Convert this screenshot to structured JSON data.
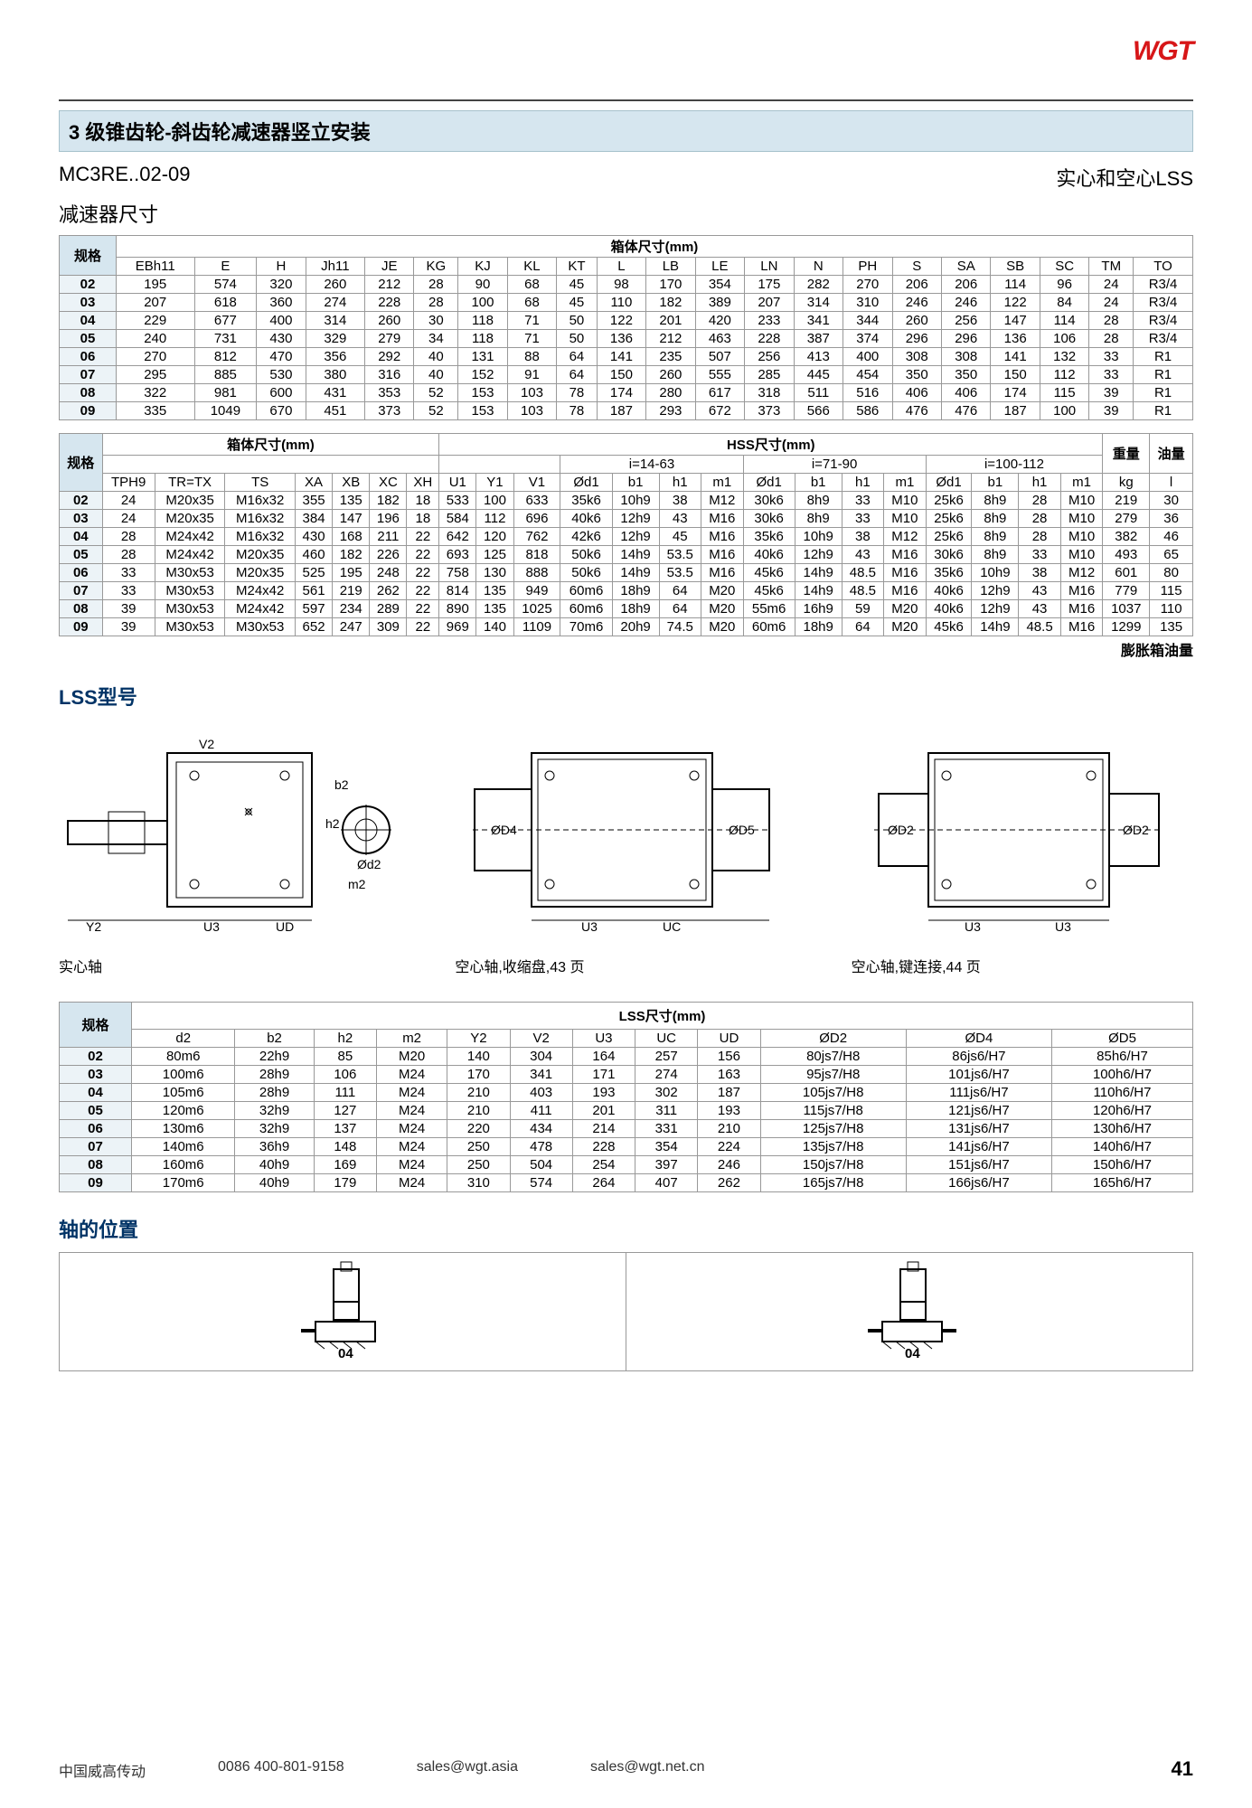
{
  "brand": "WGT",
  "section_title": "3 级锥齿轮-斜齿轮减速器竖立安装",
  "model_code": "MC3RE..02-09",
  "variant_label": "实心和空心LSS",
  "dim_label": "减速器尺寸",
  "table1": {
    "group_title": "箱体尺寸(mm)",
    "head_spec": "规格",
    "cols": [
      "EBh11",
      "E",
      "H",
      "Jh11",
      "JE",
      "KG",
      "KJ",
      "KL",
      "KT",
      "L",
      "LB",
      "LE",
      "LN",
      "N",
      "PH",
      "S",
      "SA",
      "SB",
      "SC",
      "TM",
      "TO"
    ],
    "rows": [
      [
        "02",
        "195",
        "574",
        "320",
        "260",
        "212",
        "28",
        "90",
        "68",
        "45",
        "98",
        "170",
        "354",
        "175",
        "282",
        "270",
        "206",
        "206",
        "114",
        "96",
        "24",
        "R3/4"
      ],
      [
        "03",
        "207",
        "618",
        "360",
        "274",
        "228",
        "28",
        "100",
        "68",
        "45",
        "110",
        "182",
        "389",
        "207",
        "314",
        "310",
        "246",
        "246",
        "122",
        "84",
        "24",
        "R3/4"
      ],
      [
        "04",
        "229",
        "677",
        "400",
        "314",
        "260",
        "30",
        "118",
        "71",
        "50",
        "122",
        "201",
        "420",
        "233",
        "341",
        "344",
        "260",
        "256",
        "147",
        "114",
        "28",
        "R3/4"
      ],
      [
        "05",
        "240",
        "731",
        "430",
        "329",
        "279",
        "34",
        "118",
        "71",
        "50",
        "136",
        "212",
        "463",
        "228",
        "387",
        "374",
        "296",
        "296",
        "136",
        "106",
        "28",
        "R3/4"
      ],
      [
        "06",
        "270",
        "812",
        "470",
        "356",
        "292",
        "40",
        "131",
        "88",
        "64",
        "141",
        "235",
        "507",
        "256",
        "413",
        "400",
        "308",
        "308",
        "141",
        "132",
        "33",
        "R1"
      ],
      [
        "07",
        "295",
        "885",
        "530",
        "380",
        "316",
        "40",
        "152",
        "91",
        "64",
        "150",
        "260",
        "555",
        "285",
        "445",
        "454",
        "350",
        "350",
        "150",
        "112",
        "33",
        "R1"
      ],
      [
        "08",
        "322",
        "981",
        "600",
        "431",
        "353",
        "52",
        "153",
        "103",
        "78",
        "174",
        "280",
        "617",
        "318",
        "511",
        "516",
        "406",
        "406",
        "174",
        "115",
        "39",
        "R1"
      ],
      [
        "09",
        "335",
        "1049",
        "670",
        "451",
        "373",
        "52",
        "153",
        "103",
        "78",
        "187",
        "293",
        "672",
        "373",
        "566",
        "586",
        "476",
        "476",
        "187",
        "100",
        "39",
        "R1"
      ]
    ]
  },
  "table2": {
    "group1": "箱体尺寸(mm)",
    "group2": "HSS尺寸(mm)",
    "sub_i1": "i=14-63",
    "sub_i2": "i=71-90",
    "sub_i3": "i=100-112",
    "weight": "重量",
    "oil": "油量",
    "head_spec": "规格",
    "block1_cols": [
      "TPH9",
      "TR=TX",
      "TS",
      "XA",
      "XB",
      "XC",
      "XH"
    ],
    "block2_cols": [
      "U1",
      "Y1",
      "V1"
    ],
    "i_cols": [
      "Ød1",
      "b1",
      "h1",
      "m1"
    ],
    "weight_unit": "kg",
    "oil_unit": "l",
    "rows": [
      [
        "02",
        "24",
        "M20x35",
        "M16x32",
        "355",
        "135",
        "182",
        "18",
        "533",
        "100",
        "633",
        "35k6",
        "10h9",
        "38",
        "M12",
        "30k6",
        "8h9",
        "33",
        "M10",
        "25k6",
        "8h9",
        "28",
        "M10",
        "219",
        "30"
      ],
      [
        "03",
        "24",
        "M20x35",
        "M16x32",
        "384",
        "147",
        "196",
        "18",
        "584",
        "112",
        "696",
        "40k6",
        "12h9",
        "43",
        "M16",
        "30k6",
        "8h9",
        "33",
        "M10",
        "25k6",
        "8h9",
        "28",
        "M10",
        "279",
        "36"
      ],
      [
        "04",
        "28",
        "M24x42",
        "M16x32",
        "430",
        "168",
        "211",
        "22",
        "642",
        "120",
        "762",
        "42k6",
        "12h9",
        "45",
        "M16",
        "35k6",
        "10h9",
        "38",
        "M12",
        "25k6",
        "8h9",
        "28",
        "M10",
        "382",
        "46"
      ],
      [
        "05",
        "28",
        "M24x42",
        "M20x35",
        "460",
        "182",
        "226",
        "22",
        "693",
        "125",
        "818",
        "50k6",
        "14h9",
        "53.5",
        "M16",
        "40k6",
        "12h9",
        "43",
        "M16",
        "30k6",
        "8h9",
        "33",
        "M10",
        "493",
        "65"
      ],
      [
        "06",
        "33",
        "M30x53",
        "M20x35",
        "525",
        "195",
        "248",
        "22",
        "758",
        "130",
        "888",
        "50k6",
        "14h9",
        "53.5",
        "M16",
        "45k6",
        "14h9",
        "48.5",
        "M16",
        "35k6",
        "10h9",
        "38",
        "M12",
        "601",
        "80"
      ],
      [
        "07",
        "33",
        "M30x53",
        "M24x42",
        "561",
        "219",
        "262",
        "22",
        "814",
        "135",
        "949",
        "60m6",
        "18h9",
        "64",
        "M20",
        "45k6",
        "14h9",
        "48.5",
        "M16",
        "40k6",
        "12h9",
        "43",
        "M16",
        "779",
        "115"
      ],
      [
        "08",
        "39",
        "M30x53",
        "M24x42",
        "597",
        "234",
        "289",
        "22",
        "890",
        "135",
        "1025",
        "60m6",
        "18h9",
        "64",
        "M20",
        "55m6",
        "16h9",
        "59",
        "M20",
        "40k6",
        "12h9",
        "43",
        "M16",
        "1037",
        "110"
      ],
      [
        "09",
        "39",
        "M30x53",
        "M30x53",
        "652",
        "247",
        "309",
        "22",
        "969",
        "140",
        "1109",
        "70m6",
        "20h9",
        "74.5",
        "M20",
        "60m6",
        "18h9",
        "64",
        "M20",
        "45k6",
        "14h9",
        "48.5",
        "M16",
        "1299",
        "135"
      ]
    ],
    "expansion_note": "膨胀箱油量"
  },
  "lss_section": "LSS型号",
  "diagram_captions": [
    "实心轴",
    "空心轴,收缩盘,43 页",
    "空心轴,键连接,44 页"
  ],
  "diagram_labels": {
    "d1": [
      "V2",
      "b2",
      "h2",
      "Ød2",
      "m2",
      "Y2",
      "U3",
      "UD"
    ],
    "d2": [
      "ØD4",
      "ØD5",
      "U3",
      "UC"
    ],
    "d3": [
      "ØD2",
      "ØD2",
      "U3",
      "U3"
    ]
  },
  "table3": {
    "group_title": "LSS尺寸(mm)",
    "head_spec": "规格",
    "cols": [
      "d2",
      "b2",
      "h2",
      "m2",
      "Y2",
      "V2",
      "U3",
      "UC",
      "UD",
      "ØD2",
      "ØD4",
      "ØD5"
    ],
    "rows": [
      [
        "02",
        "80m6",
        "22h9",
        "85",
        "M20",
        "140",
        "304",
        "164",
        "257",
        "156",
        "80js7/H8",
        "86js6/H7",
        "85h6/H7"
      ],
      [
        "03",
        "100m6",
        "28h9",
        "106",
        "M24",
        "170",
        "341",
        "171",
        "274",
        "163",
        "95js7/H8",
        "101js6/H7",
        "100h6/H7"
      ],
      [
        "04",
        "105m6",
        "28h9",
        "111",
        "M24",
        "210",
        "403",
        "193",
        "302",
        "187",
        "105js7/H8",
        "111js6/H7",
        "110h6/H7"
      ],
      [
        "05",
        "120m6",
        "32h9",
        "127",
        "M24",
        "210",
        "411",
        "201",
        "311",
        "193",
        "115js7/H8",
        "121js6/H7",
        "120h6/H7"
      ],
      [
        "06",
        "130m6",
        "32h9",
        "137",
        "M24",
        "220",
        "434",
        "214",
        "331",
        "210",
        "125js7/H8",
        "131js6/H7",
        "130h6/H7"
      ],
      [
        "07",
        "140m6",
        "36h9",
        "148",
        "M24",
        "250",
        "478",
        "228",
        "354",
        "224",
        "135js7/H8",
        "141js6/H7",
        "140h6/H7"
      ],
      [
        "08",
        "160m6",
        "40h9",
        "169",
        "M24",
        "250",
        "504",
        "254",
        "397",
        "246",
        "150js7/H8",
        "151js6/H7",
        "150h6/H7"
      ],
      [
        "09",
        "170m6",
        "40h9",
        "179",
        "M24",
        "310",
        "574",
        "264",
        "407",
        "262",
        "165js7/H8",
        "166js6/H7",
        "165h6/H7"
      ]
    ]
  },
  "shaft_section": "轴的位置",
  "shaft_label": "04",
  "footer": {
    "company": "中国威高传动",
    "phone": "0086 400-801-9158",
    "email1": "sales@wgt.asia",
    "email2": "sales@wgt.net.cn",
    "page": "41"
  }
}
